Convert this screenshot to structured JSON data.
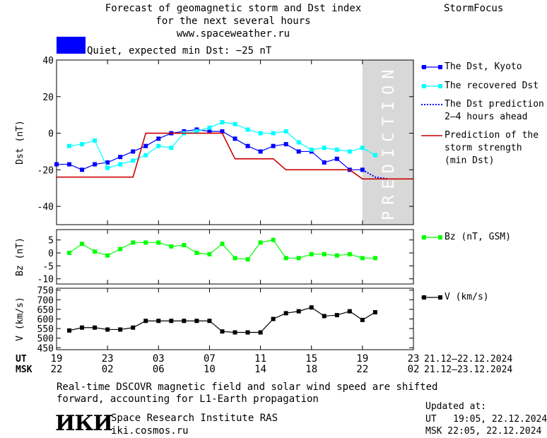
{
  "header": {
    "title_lines": [
      "Forecast of geomagnetic storm and Dst index",
      "for the next several hours",
      "www.spaceweather.ru"
    ],
    "brand": "StormFocus",
    "status_label": "Quiet, expected min Dst: −25 nT",
    "status_color": "#0000ff"
  },
  "legend": {
    "dst_kyoto": "The Dst, Kyoto",
    "dst_recovered": "The recovered Dst",
    "dst_prediction": [
      "The Dst prediction",
      "2–4 hours ahead"
    ],
    "storm_strength": [
      "Prediction of the",
      "storm strength",
      "(min Dst)"
    ],
    "bz": "Bz (nT, GSM)",
    "v": "V (km/s)"
  },
  "prediction_band_text": "PREDICTION",
  "time_axis": {
    "ut_label": "UT",
    "msk_label": "MSK",
    "ut_ticks": [
      "19",
      "23",
      "03",
      "07",
      "11",
      "15",
      "19",
      "23"
    ],
    "msk_ticks": [
      "22",
      "02",
      "06",
      "10",
      "14",
      "18",
      "22",
      "02"
    ],
    "ut_range": "21.12–22.12.2024",
    "msk_range": "21.12–23.12.2024"
  },
  "footer": {
    "note_lines": [
      "Real-time DSCOVR magnetic field and solar wind speed are shifted",
      "forward, accounting for L1-Earth propagation"
    ],
    "logo_text": "ИКИ",
    "institute": "Space Research Institute RAS",
    "site": "iki.cosmos.ru",
    "updated_label": "Updated at:",
    "updated_ut": "UT   19:05, 22.12.2024",
    "updated_msk": "MSK 22:05, 22.12.2024"
  },
  "chart_data": [
    {
      "type": "line",
      "ylabel": "Dst (nT)",
      "ylim": [
        -50,
        40
      ],
      "yticks": [
        40,
        20,
        0,
        -20,
        -40
      ],
      "x_unit": "hours since 19 UT 21.12.2024",
      "xlim": [
        0,
        28
      ],
      "prediction_band": [
        24,
        28
      ],
      "series": [
        {
          "name": "The Dst, Kyoto",
          "color": "#0000ff",
          "style": "line-square",
          "x": [
            0,
            1,
            2,
            3,
            4,
            5,
            6,
            7,
            8,
            9,
            10,
            11,
            12,
            13,
            14,
            15,
            16,
            17,
            18,
            19,
            20,
            21,
            22,
            23,
            24
          ],
          "y": [
            -17,
            -17,
            -20,
            -17,
            -16,
            -13,
            -10,
            -7,
            -3,
            0,
            1,
            2,
            1,
            1,
            -3,
            -7,
            -10,
            -7,
            -6,
            -10,
            -10,
            -16,
            -14,
            -20,
            -20
          ]
        },
        {
          "name": "The recovered Dst",
          "color": "#00ffff",
          "style": "line-square",
          "x": [
            1,
            2,
            3,
            4,
            5,
            6,
            7,
            8,
            9,
            10,
            11,
            12,
            13,
            14,
            15,
            16,
            17,
            18,
            19,
            20,
            21,
            22,
            23,
            24,
            25
          ],
          "y": [
            -7,
            -6,
            -4,
            -19,
            -17,
            -15,
            -12,
            -7,
            -8,
            0,
            1,
            3,
            6,
            5,
            2,
            0,
            0,
            1,
            -5,
            -9,
            -8,
            -9,
            -10,
            -8,
            -12
          ]
        },
        {
          "name": "The Dst prediction 2–4 hours ahead",
          "color": "#0000ff",
          "style": "dotted",
          "x": [
            24,
            25,
            26
          ],
          "y": [
            -20,
            -24,
            -25
          ]
        },
        {
          "name": "Prediction of the storm strength (min Dst)",
          "color": "#cc0000",
          "style": "line",
          "x": [
            0,
            6,
            7,
            13,
            14,
            17,
            18,
            23,
            24,
            28
          ],
          "y": [
            -24,
            -24,
            0,
            0,
            -14,
            -14,
            -20,
            -20,
            -25,
            -25
          ]
        }
      ]
    },
    {
      "type": "line",
      "ylabel": "Bz (nT)",
      "ylim": [
        -12,
        9
      ],
      "yticks": [
        5,
        0,
        -5,
        -10
      ],
      "series": [
        {
          "name": "Bz (nT, GSM)",
          "color": "#00ff00",
          "style": "line-square",
          "x": [
            1,
            2,
            3,
            4,
            5,
            6,
            7,
            8,
            9,
            10,
            11,
            12,
            13,
            14,
            15,
            16,
            17,
            18,
            19,
            20,
            21,
            22,
            23,
            24,
            25
          ],
          "y": [
            0,
            3.5,
            0.5,
            -1,
            1.5,
            4,
            4,
            4,
            2.5,
            3,
            0,
            -0.5,
            3.5,
            -2,
            -2.5,
            4,
            5,
            -2,
            -2,
            -0.5,
            -0.5,
            -1,
            -0.5,
            -2,
            -2
          ]
        }
      ]
    },
    {
      "type": "line",
      "ylabel": "V (km/s)",
      "ylim": [
        440,
        760
      ],
      "yticks": [
        750,
        700,
        650,
        600,
        550,
        500,
        450
      ],
      "series": [
        {
          "name": "V (km/s)",
          "color": "#000000",
          "style": "line-square",
          "x": [
            1,
            2,
            3,
            4,
            5,
            6,
            7,
            8,
            9,
            10,
            11,
            12,
            13,
            14,
            15,
            16,
            17,
            18,
            19,
            20,
            21,
            22,
            23,
            24,
            25
          ],
          "y": [
            540,
            555,
            555,
            545,
            545,
            555,
            590,
            590,
            590,
            590,
            590,
            590,
            535,
            530,
            530,
            530,
            600,
            630,
            640,
            660,
            615,
            620,
            640,
            595,
            635
          ]
        }
      ]
    }
  ]
}
